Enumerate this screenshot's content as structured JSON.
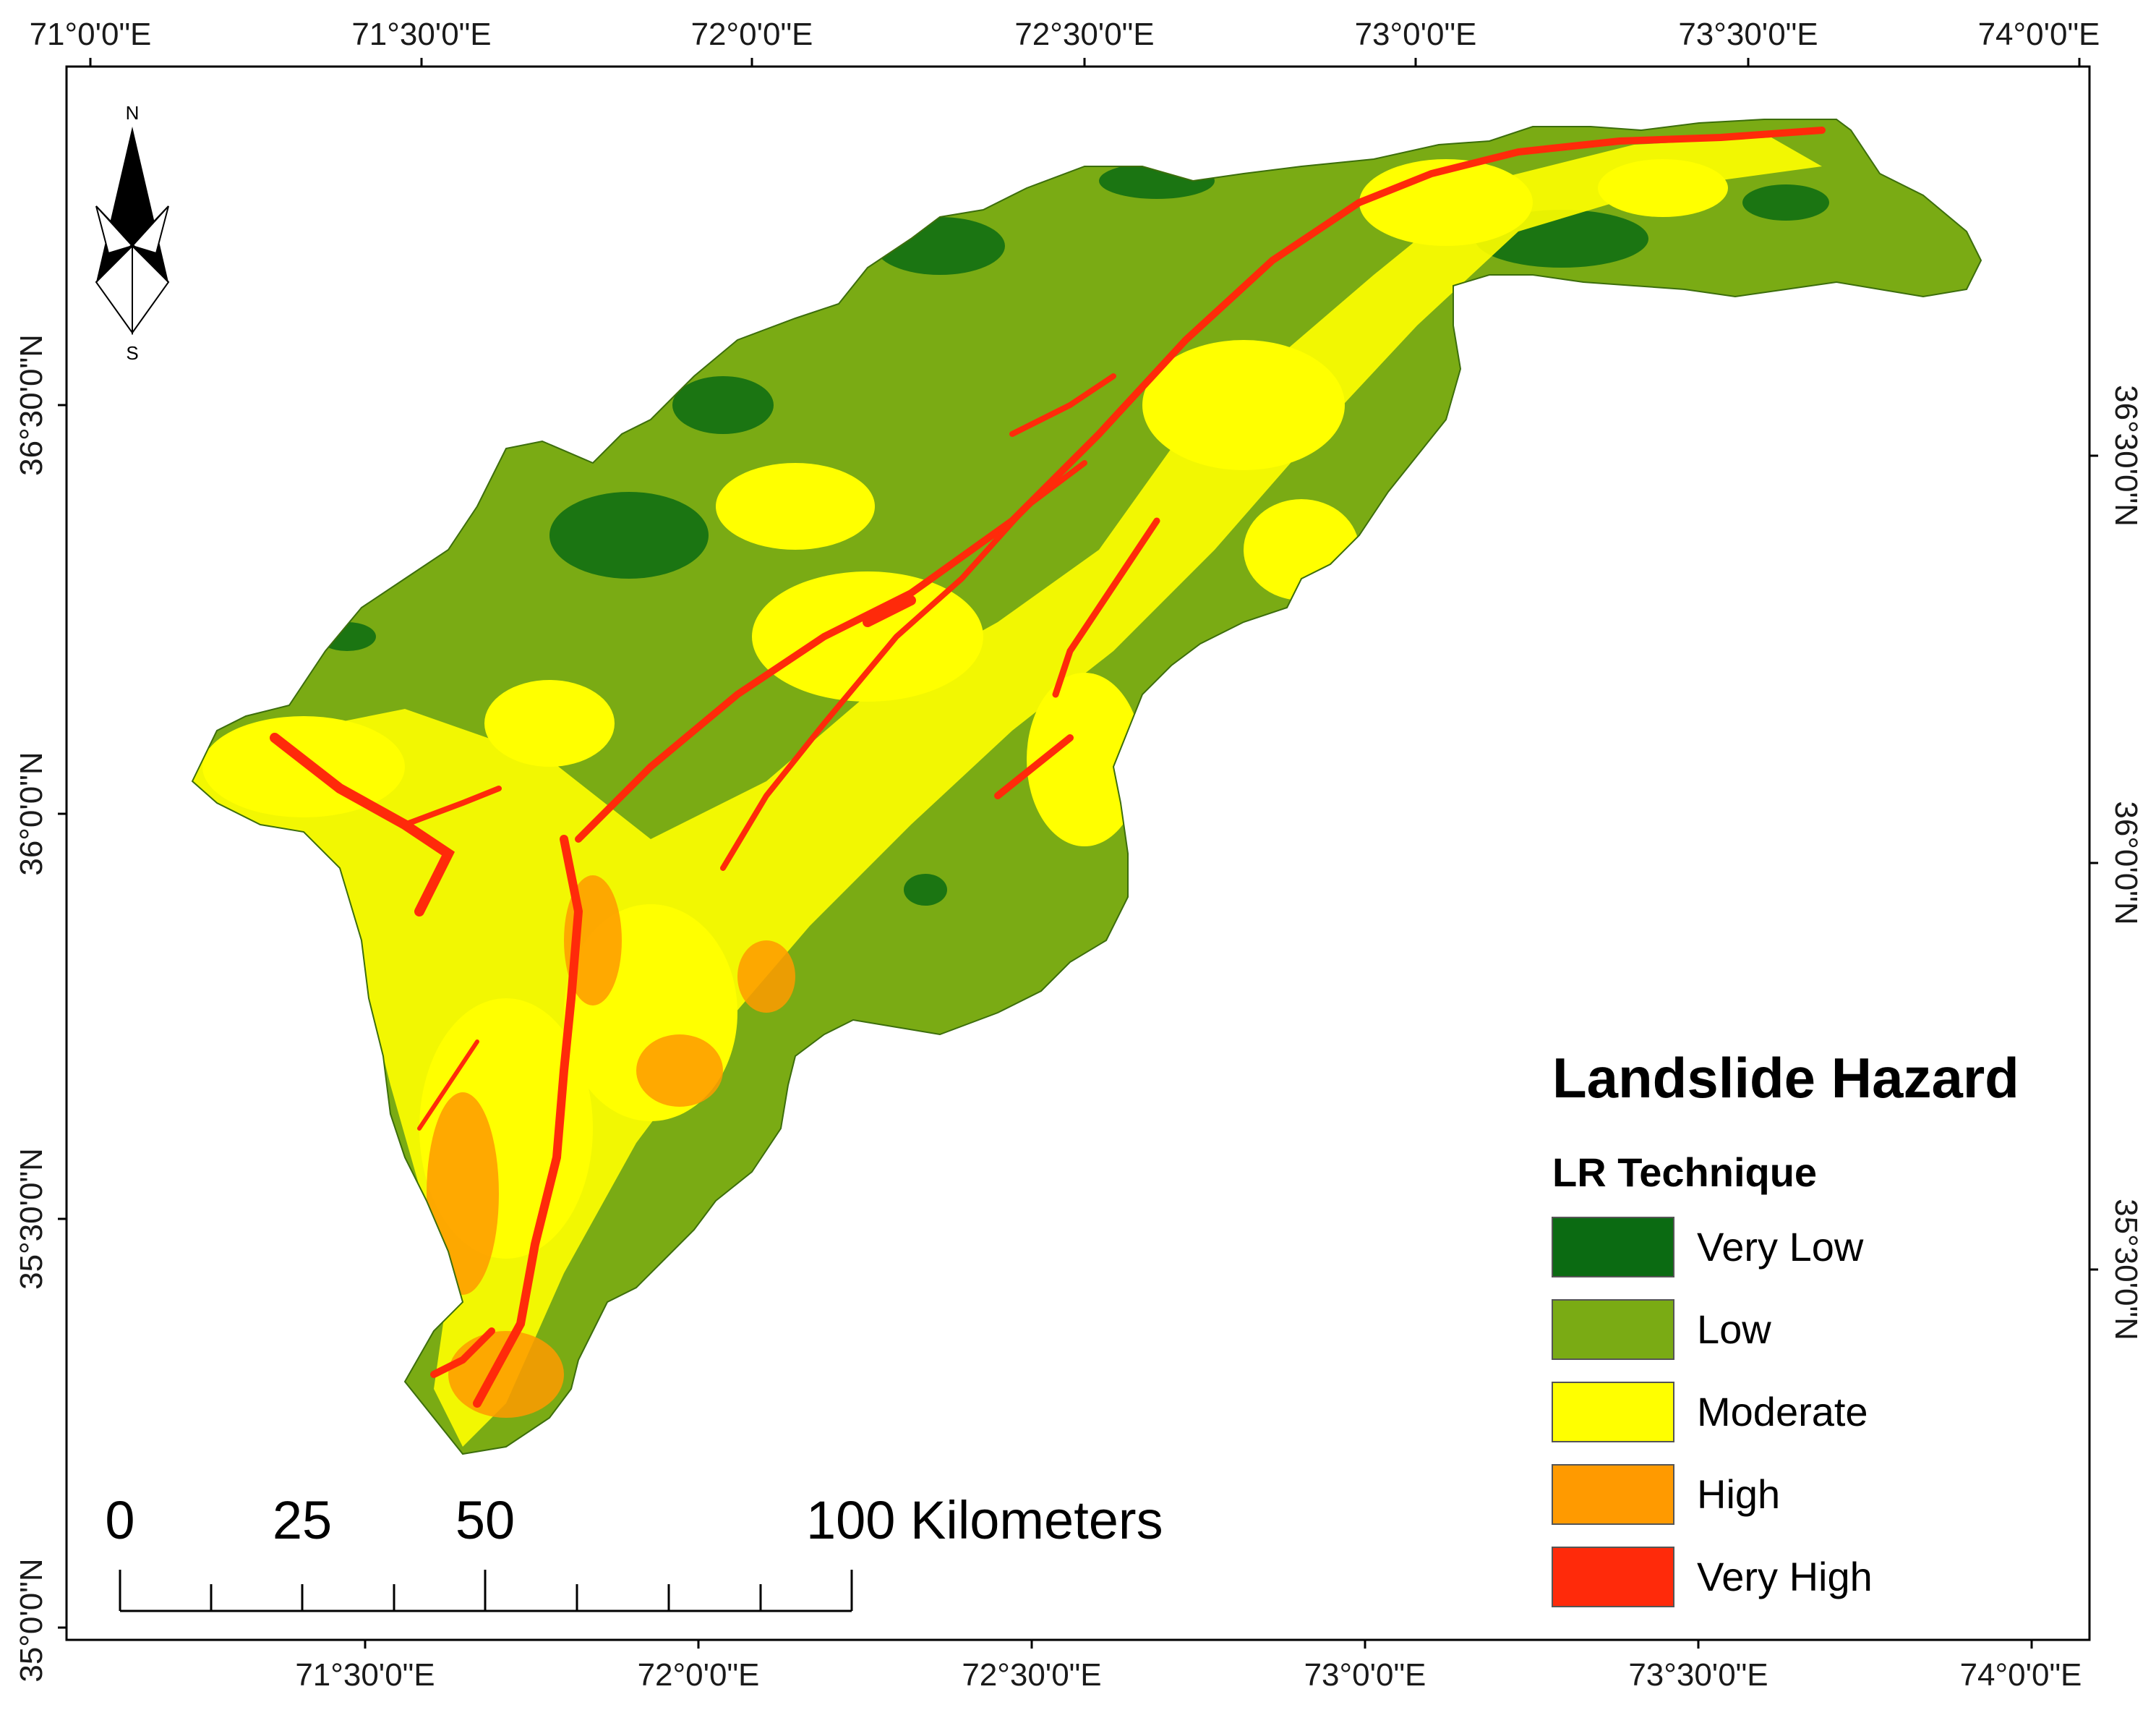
{
  "map": {
    "legend": {
      "title": "Landslide Hazard",
      "subtitle": "LR Technique",
      "classes": [
        {
          "label": "Very Low",
          "color": "#0b6b12"
        },
        {
          "label": "Low",
          "color": "#7aab14"
        },
        {
          "label": "Moderate",
          "color": "#ffff00"
        },
        {
          "label": "High",
          "color": "#ff9a00"
        },
        {
          "label": "Very High",
          "color": "#ff2a0a"
        }
      ]
    },
    "top_ticks": [
      "71°0'0\"E",
      "71°30'0\"E",
      "72°0'0\"E",
      "72°30'0\"E",
      "73°0'0\"E",
      "73°30'0\"E",
      "74°0'0\"E"
    ],
    "bottom_ticks": [
      "71°30'0\"E",
      "72°0'0\"E",
      "72°30'0\"E",
      "73°0'0\"E",
      "73°30'0\"E",
      "74°0'0\"E"
    ],
    "left_ticks": [
      "36°30'0\"N",
      "36°0'0\"N",
      "35°30'0\"N",
      "35°0'0\"N"
    ],
    "right_ticks": [
      "36°30'0\"N",
      "36°0'0\"N",
      "35°30'0\"N"
    ],
    "scale_bar": {
      "labels": [
        "0",
        "25",
        "50",
        "100 Kilometers"
      ]
    },
    "north_arrow": {
      "north": "N",
      "south": "S",
      "icon": "north-arrow-icon"
    }
  }
}
